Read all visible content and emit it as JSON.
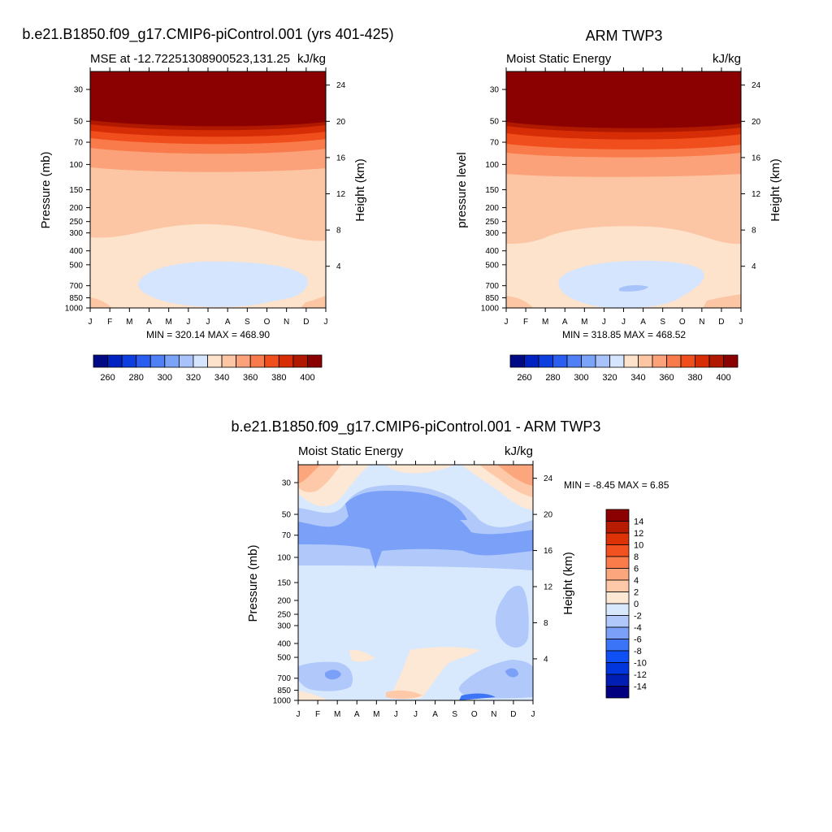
{
  "colors": {
    "mse_palette": [
      "#000a85",
      "#0022c0",
      "#0c3ee0",
      "#2a5df0",
      "#4f80f5",
      "#7ba3f8",
      "#a8c3fa",
      "#d5e5fd",
      "#fde2cc",
      "#fcc6a4",
      "#fba27a",
      "#f97a4a",
      "#f04e1c",
      "#d72d06",
      "#b01800",
      "#8b0000"
    ],
    "diff_palette": [
      "#000080",
      "#001eb4",
      "#0036dc",
      "#0f50f5",
      "#3c74f8",
      "#7aa0f8",
      "#b0c8fa",
      "#d8e8fd",
      "#fde7d5",
      "#fdc9a8",
      "#fba67c",
      "#f97c4a",
      "#f25220",
      "#dd3205",
      "#b81c00",
      "#8b0000"
    ]
  },
  "panels": {
    "model": {
      "title": "b.e21.B1850.f09_g17.CMIP6-piControl.001 (yrs 401-425)",
      "left_label": "MSE at -12.72251308900523,131.25",
      "right_label": "kJ/kg",
      "stats": "MIN = 320.14 MAX = 468.90",
      "ylabel": "Pressure (mb)",
      "ylabel_right": "Height (km)"
    },
    "obs": {
      "title": "ARM TWP3",
      "left_label": "Moist Static Energy",
      "right_label": "kJ/kg",
      "stats": "MIN = 318.85 MAX = 468.52",
      "ylabel": "pressure level",
      "ylabel_right": "Height (km)"
    },
    "diff": {
      "title": "b.e21.B1850.f09_g17.CMIP6-piControl.001 - ARM TWP3",
      "left_label": "Moist Static Energy",
      "right_label": "kJ/kg",
      "stats": "MIN =  -8.45 MAX =   6.85",
      "ylabel": "Pressure (mb)",
      "ylabel_right": "Height (km)"
    }
  },
  "chart_data": [
    {
      "type": "heatmap",
      "name": "model",
      "x_ticks": [
        "J",
        "F",
        "M",
        "A",
        "M",
        "J",
        "J",
        "A",
        "S",
        "O",
        "N",
        "D",
        "J"
      ],
      "y_ticks_pressure": [
        "30",
        "50",
        "70",
        "100",
        "150",
        "200",
        "250",
        "300",
        "400",
        "500",
        "700",
        "850",
        "1000"
      ],
      "y_ticks_height": [
        "24",
        "20",
        "16",
        "12",
        "8",
        "4"
      ],
      "colorbar_labels": [
        "260",
        "280",
        "300",
        "320",
        "340",
        "360",
        "380",
        "400"
      ],
      "levels_between_colors": [
        250,
        260,
        270,
        280,
        290,
        300,
        310,
        320,
        330,
        340,
        350,
        360,
        370,
        380,
        390,
        400
      ],
      "min": 320.14,
      "max": 468.9
    },
    {
      "type": "heatmap",
      "name": "obs",
      "x_ticks": [
        "J",
        "F",
        "M",
        "A",
        "M",
        "J",
        "J",
        "A",
        "S",
        "O",
        "N",
        "D",
        "J"
      ],
      "y_ticks_pressure": [
        "30",
        "50",
        "70",
        "100",
        "150",
        "200",
        "250",
        "300",
        "400",
        "500",
        "700",
        "850",
        "1000"
      ],
      "y_ticks_height": [
        "24",
        "20",
        "16",
        "12",
        "8",
        "4"
      ],
      "colorbar_labels": [
        "260",
        "280",
        "300",
        "320",
        "340",
        "360",
        "380",
        "400"
      ],
      "min": 318.85,
      "max": 468.52
    },
    {
      "type": "heatmap",
      "name": "difference",
      "x_ticks": [
        "J",
        "F",
        "M",
        "A",
        "M",
        "J",
        "J",
        "A",
        "S",
        "O",
        "N",
        "D",
        "J"
      ],
      "y_ticks_pressure": [
        "30",
        "50",
        "70",
        "100",
        "150",
        "200",
        "250",
        "300",
        "400",
        "500",
        "700",
        "850",
        "1000"
      ],
      "y_ticks_height": [
        "24",
        "20",
        "16",
        "12",
        "8",
        "4"
      ],
      "colorbar_labels": [
        "14",
        "12",
        "10",
        "8",
        "6",
        "4",
        "2",
        "0",
        "-2",
        "-4",
        "-6",
        "-8",
        "-10",
        "-12",
        "-14"
      ],
      "min": -8.45,
      "max": 6.85
    }
  ]
}
